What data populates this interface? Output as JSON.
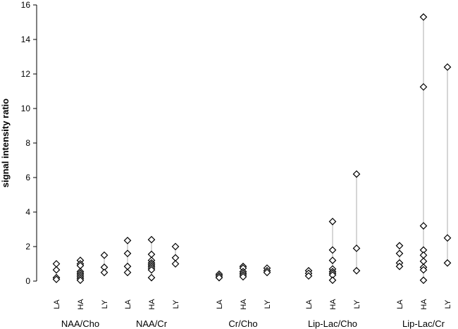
{
  "chart_data": {
    "type": "scatter",
    "title": "",
    "xlabel": "",
    "ylabel": "signal intensity ratio",
    "ylim": [
      0,
      16
    ],
    "yticks": [
      "0",
      "2",
      "4",
      "6",
      "8",
      "10",
      "12",
      "14",
      "16"
    ],
    "grid": false,
    "legend": "none",
    "marker": "diamond-open",
    "groups": [
      {
        "name": "NAA/Cho",
        "categories": [
          {
            "label": "LA",
            "values": [
              1.0,
              0.65,
              0.2,
              0.1
            ]
          },
          {
            "label": "HA",
            "values": [
              1.2,
              1.0,
              0.9,
              0.55,
              0.45,
              0.35,
              0.25,
              0.15,
              0.05
            ]
          },
          {
            "label": "LY",
            "values": [
              1.5,
              0.8,
              0.5
            ]
          }
        ]
      },
      {
        "name": "NAA/Cr",
        "categories": [
          {
            "label": "LA",
            "values": [
              2.35,
              1.6,
              0.85,
              0.5
            ]
          },
          {
            "label": "HA",
            "values": [
              2.4,
              1.55,
              1.2,
              1.05,
              0.95,
              0.85,
              0.75,
              0.65,
              0.2
            ]
          },
          {
            "label": "LY",
            "values": [
              2.0,
              1.35,
              1.0
            ]
          }
        ]
      },
      {
        "name": "Cr/Cho",
        "categories": [
          {
            "label": "LA",
            "values": [
              0.4,
              0.3,
              0.2
            ]
          },
          {
            "label": "HA",
            "values": [
              0.85,
              0.75,
              0.55,
              0.45,
              0.35,
              0.25
            ]
          },
          {
            "label": "LY",
            "values": [
              0.75,
              0.6,
              0.5
            ]
          }
        ]
      },
      {
        "name": "Lip-Lac/Cho",
        "categories": [
          {
            "label": "LA",
            "values": [
              0.6,
              0.45,
              0.3
            ]
          },
          {
            "label": "HA",
            "values": [
              3.45,
              1.8,
              1.2,
              0.7,
              0.55,
              0.45,
              0.35,
              0.05
            ]
          },
          {
            "label": "LY",
            "values": [
              6.2,
              1.9,
              0.6
            ]
          }
        ]
      },
      {
        "name": "Lip-Lac/Cr",
        "categories": [
          {
            "label": "LA",
            "values": [
              2.05,
              1.6,
              1.05,
              0.85
            ]
          },
          {
            "label": "HA",
            "values": [
              15.3,
              11.25,
              3.2,
              1.8,
              1.5,
              1.15,
              0.8,
              0.65,
              0.05
            ]
          },
          {
            "label": "LY",
            "values": [
              12.4,
              2.5,
              1.05
            ]
          }
        ]
      }
    ]
  }
}
